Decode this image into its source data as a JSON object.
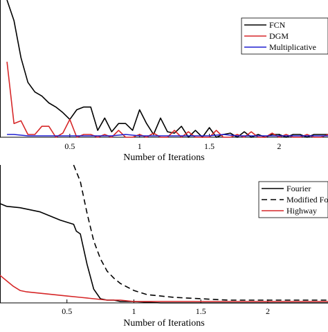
{
  "chart_data": [
    {
      "type": "line",
      "xlabel": "Number of Iterations",
      "ylabel": "",
      "xlim": [
        0.0,
        2.35
      ],
      "ylim": [
        0,
        1
      ],
      "xticks": [
        0.5,
        1,
        1.5,
        2
      ],
      "xtick_labels": [
        "0.5",
        "1",
        "1.5",
        "2"
      ],
      "legend_position": "top-right",
      "series": [
        {
          "name": "FCN",
          "color": "#000000",
          "dash": "",
          "x": [
            0.05,
            0.1,
            0.15,
            0.2,
            0.25,
            0.3,
            0.35,
            0.4,
            0.45,
            0.5,
            0.55,
            0.6,
            0.65,
            0.7,
            0.75,
            0.8,
            0.85,
            0.9,
            0.95,
            1.0,
            1.05,
            1.1,
            1.15,
            1.2,
            1.25,
            1.3,
            1.35,
            1.4,
            1.45,
            1.5,
            1.55,
            1.6,
            1.65,
            1.7,
            1.75,
            1.8,
            1.85,
            1.9,
            1.95,
            2.0,
            2.05,
            2.1,
            2.15,
            2.2,
            2.25,
            2.3,
            2.35
          ],
          "values": [
            1.0,
            0.85,
            0.58,
            0.4,
            0.33,
            0.3,
            0.25,
            0.22,
            0.18,
            0.13,
            0.2,
            0.22,
            0.22,
            0.05,
            0.14,
            0.04,
            0.1,
            0.1,
            0.05,
            0.2,
            0.1,
            0.02,
            0.14,
            0.04,
            0.03,
            0.08,
            0.0,
            0.05,
            0.0,
            0.07,
            0.0,
            0.02,
            0.03,
            0.0,
            0.04,
            0.0,
            0.02,
            0.0,
            0.02,
            0.02,
            0.0,
            0.02,
            0.02,
            0.0,
            0.02,
            0.02,
            0.02
          ]
        },
        {
          "name": "DGM",
          "color": "#d62728",
          "dash": "",
          "x": [
            0.05,
            0.1,
            0.15,
            0.2,
            0.25,
            0.3,
            0.35,
            0.4,
            0.45,
            0.5,
            0.55,
            0.6,
            0.65,
            0.7,
            0.75,
            0.8,
            0.85,
            0.9,
            0.95,
            1.0,
            1.05,
            1.1,
            1.15,
            1.2,
            1.25,
            1.3,
            1.35,
            1.4,
            1.45,
            1.5,
            1.55,
            1.6,
            1.65,
            1.7,
            1.75,
            1.8,
            1.85,
            1.9,
            1.95,
            2.0,
            2.05,
            2.1,
            2.15,
            2.2,
            2.25,
            2.3,
            2.35
          ],
          "values": [
            0.55,
            0.1,
            0.12,
            0.02,
            0.02,
            0.08,
            0.08,
            0.0,
            0.03,
            0.13,
            0.0,
            0.02,
            0.02,
            0.0,
            0.02,
            0.0,
            0.05,
            0.0,
            0.0,
            0.02,
            0.0,
            0.03,
            0.0,
            0.0,
            0.05,
            0.0,
            0.04,
            0.0,
            0.0,
            0.0,
            0.05,
            0.0,
            0.0,
            0.02,
            0.0,
            0.04,
            0.0,
            0.0,
            0.03,
            0.0,
            0.02,
            0.0,
            0.0,
            0.02,
            0.0,
            0.0,
            0.02
          ]
        },
        {
          "name": "Multiplicative",
          "color": "#1f1fd0",
          "dash": "",
          "x": [
            0.05,
            0.1,
            0.2,
            0.3,
            0.4,
            0.5,
            0.6,
            0.7,
            0.8,
            0.9,
            1.0,
            1.1,
            1.2,
            1.3,
            1.4,
            1.5,
            1.6,
            1.7,
            1.8,
            1.9,
            2.0,
            2.1,
            2.2,
            2.35
          ],
          "values": [
            0.02,
            0.02,
            0.01,
            0.01,
            0.01,
            0.01,
            0.01,
            0.01,
            0.01,
            0.02,
            0.01,
            0.01,
            0.01,
            0.01,
            0.01,
            0.01,
            0.02,
            0.01,
            0.01,
            0.01,
            0.01,
            0.01,
            0.01,
            0.01
          ]
        }
      ]
    },
    {
      "type": "line",
      "xlabel": "Number of Iterations",
      "ylabel": "",
      "xlim": [
        0.0,
        2.45
      ],
      "ylim": [
        0,
        1
      ],
      "xticks": [
        0.5,
        1,
        1.5,
        2
      ],
      "xtick_labels": [
        "0.5",
        "1",
        "1.5",
        "2"
      ],
      "legend_position": "top-right",
      "series": [
        {
          "name": "Fourier",
          "color": "#000000",
          "dash": "",
          "x": [
            0.0,
            0.05,
            0.15,
            0.3,
            0.45,
            0.55,
            0.57,
            0.6,
            0.65,
            0.7,
            0.75,
            0.8,
            0.85,
            0.9,
            1.0,
            1.2,
            1.5,
            2.0,
            2.45
          ],
          "values": [
            0.72,
            0.7,
            0.69,
            0.66,
            0.6,
            0.57,
            0.52,
            0.5,
            0.28,
            0.1,
            0.03,
            0.02,
            0.02,
            0.01,
            0.01,
            0.0,
            0.0,
            0.0,
            0.0
          ]
        },
        {
          "name": "Modified Fourier",
          "color": "#000000",
          "dash": "8 5",
          "x": [
            0.55,
            0.6,
            0.65,
            0.7,
            0.75,
            0.8,
            0.85,
            0.9,
            1.0,
            1.1,
            1.2,
            1.3,
            1.5,
            1.7,
            2.0,
            2.2,
            2.45
          ],
          "values": [
            1.0,
            0.88,
            0.65,
            0.45,
            0.32,
            0.23,
            0.18,
            0.14,
            0.09,
            0.06,
            0.05,
            0.04,
            0.03,
            0.02,
            0.02,
            0.02,
            0.02
          ]
        },
        {
          "name": "Highway",
          "color": "#d62728",
          "dash": "",
          "x": [
            0.0,
            0.05,
            0.1,
            0.15,
            0.2,
            0.3,
            0.4,
            0.5,
            0.6,
            0.7,
            0.8,
            0.9,
            1.0,
            1.2,
            1.5,
            2.0,
            2.45
          ],
          "values": [
            0.2,
            0.16,
            0.12,
            0.09,
            0.08,
            0.07,
            0.06,
            0.05,
            0.04,
            0.03,
            0.02,
            0.02,
            0.01,
            0.01,
            0.01,
            0.01,
            0.01
          ]
        }
      ]
    }
  ]
}
